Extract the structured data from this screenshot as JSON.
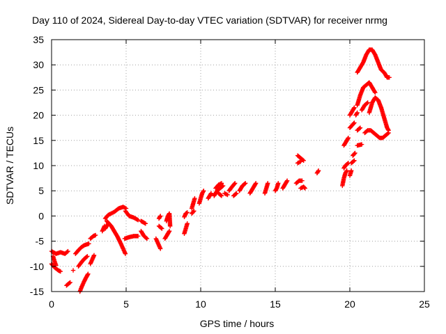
{
  "chart_data": {
    "type": "scatter",
    "title": "Day 110 of 2024, Sidereal Day-to-day VTEC variation (SDTVAR) for receiver nrmg",
    "xlabel": "GPS time / hours",
    "ylabel": "SDTVAR / TECUs",
    "xlim": [
      0,
      25
    ],
    "ylim": [
      -15,
      35
    ],
    "xticks": [
      0,
      5,
      10,
      15,
      20,
      25
    ],
    "yticks": [
      -15,
      -10,
      -5,
      0,
      5,
      10,
      15,
      20,
      25,
      30,
      35
    ],
    "grid": true,
    "marker": "+",
    "series_color": "#ff0000",
    "segments": [
      [
        [
          0.0,
          -7.0
        ],
        [
          0.3,
          -7.5
        ],
        [
          0.6,
          -7.2
        ],
        [
          0.9,
          -7.5
        ],
        [
          1.1,
          -7.0
        ]
      ],
      [
        [
          0.0,
          -9.5
        ],
        [
          0.2,
          -10.2
        ],
        [
          0.45,
          -10.8
        ],
        [
          0.6,
          -11.0
        ]
      ],
      [
        [
          0.1,
          -8.0
        ],
        [
          0.2,
          -9.0
        ],
        [
          0.3,
          -9.8
        ]
      ],
      [
        [
          1.0,
          -13.8
        ],
        [
          1.15,
          -13.4
        ],
        [
          1.25,
          -13.2
        ]
      ],
      [
        [
          1.45,
          -10.8
        ]
      ],
      [
        [
          1.6,
          -7.5
        ],
        [
          1.8,
          -6.8
        ],
        [
          2.0,
          -6.2
        ],
        [
          2.2,
          -5.8
        ],
        [
          2.5,
          -5.5
        ]
      ],
      [
        [
          1.8,
          -10.0
        ],
        [
          2.0,
          -9.2
        ],
        [
          2.2,
          -8.5
        ],
        [
          2.4,
          -8.0
        ]
      ],
      [
        [
          1.9,
          -15.0
        ],
        [
          2.0,
          -14.2
        ],
        [
          2.15,
          -13.2
        ],
        [
          2.3,
          -12.3
        ],
        [
          2.45,
          -11.5
        ]
      ],
      [
        [
          2.6,
          -9.5
        ],
        [
          2.75,
          -8.5
        ],
        [
          2.85,
          -7.8
        ]
      ],
      [
        [
          2.6,
          -4.5
        ],
        [
          2.8,
          -4.0
        ],
        [
          2.95,
          -3.8
        ]
      ],
      [
        [
          3.4,
          -3.0
        ],
        [
          3.55,
          -2.0
        ]
      ],
      [
        [
          3.6,
          -2.5
        ],
        [
          3.7,
          -2.0
        ],
        [
          3.8,
          -1.5
        ]
      ],
      [
        [
          3.6,
          -0.5
        ],
        [
          3.8,
          0.2
        ],
        [
          4.0,
          0.5
        ],
        [
          4.2,
          0.8
        ],
        [
          4.5,
          1.5
        ],
        [
          4.8,
          1.8
        ],
        [
          5.0,
          1.5
        ]
      ],
      [
        [
          3.7,
          -1.0
        ],
        [
          4.0,
          -2.0
        ],
        [
          4.2,
          -3.0
        ],
        [
          4.4,
          -4.0
        ],
        [
          4.6,
          -5.2
        ],
        [
          4.8,
          -6.5
        ],
        [
          4.95,
          -7.5
        ]
      ],
      [
        [
          4.9,
          -4.5
        ],
        [
          5.2,
          -4.2
        ],
        [
          5.5,
          -4.0
        ],
        [
          5.8,
          -4.0
        ]
      ],
      [
        [
          4.95,
          1.0
        ],
        [
          5.2,
          0.0
        ],
        [
          5.5,
          -0.3
        ],
        [
          5.8,
          -0.8
        ]
      ],
      [
        [
          6.0,
          -1.0
        ],
        [
          6.3,
          -1.5
        ]
      ],
      [
        [
          6.0,
          -3.0
        ],
        [
          6.2,
          -4.0
        ],
        [
          6.4,
          -4.5
        ]
      ],
      [
        [
          7.2,
          -2.0
        ],
        [
          7.4,
          -2.5
        ]
      ],
      [
        [
          7.0,
          -4.5
        ],
        [
          7.15,
          -5.5
        ],
        [
          7.3,
          -6.5
        ]
      ],
      [
        [
          7.2,
          -0.5
        ],
        [
          7.3,
          0.0
        ]
      ],
      [
        [
          7.6,
          -4.5
        ],
        [
          7.8,
          -3.5
        ],
        [
          7.9,
          -3.0
        ]
      ],
      [
        [
          7.7,
          -1.0
        ],
        [
          7.8,
          0.0
        ],
        [
          7.9,
          0.5
        ],
        [
          7.95,
          -2.0
        ]
      ],
      [
        [
          8.9,
          -3.5
        ],
        [
          9.0,
          -2.5
        ],
        [
          9.1,
          -1.5
        ]
      ],
      [
        [
          8.9,
          -0.2
        ],
        [
          9.0,
          0.5
        ],
        [
          9.1,
          0.7
        ]
      ],
      [
        [
          9.4,
          1.5
        ],
        [
          9.5,
          2.5
        ],
        [
          9.6,
          3.5
        ]
      ],
      [
        [
          9.4,
          0.5
        ],
        [
          9.55,
          1.0
        ]
      ],
      [
        [
          9.9,
          2.5
        ],
        [
          10.0,
          3.5
        ],
        [
          10.1,
          4.5
        ],
        [
          10.2,
          5.0
        ]
      ],
      [
        [
          10.5,
          3.5
        ],
        [
          10.7,
          4.5
        ]
      ],
      [
        [
          10.9,
          4.0
        ],
        [
          11.1,
          5.0
        ],
        [
          11.3,
          5.5
        ],
        [
          11.5,
          6.0
        ]
      ],
      [
        [
          11.0,
          5.5
        ],
        [
          11.2,
          6.2
        ],
        [
          11.4,
          6.5
        ]
      ],
      [
        [
          11.2,
          4.5
        ],
        [
          11.4,
          4.0
        ]
      ],
      [
        [
          11.6,
          4.5
        ],
        [
          11.8,
          4.2
        ]
      ],
      [
        [
          11.9,
          5.0
        ],
        [
          12.1,
          5.8
        ],
        [
          12.3,
          6.5
        ]
      ],
      [
        [
          12.2,
          4.0
        ],
        [
          12.4,
          4.5
        ]
      ],
      [
        [
          12.6,
          5.0
        ],
        [
          12.8,
          6.0
        ],
        [
          13.0,
          6.5
        ]
      ],
      [
        [
          13.3,
          4.5
        ],
        [
          13.5,
          5.5
        ],
        [
          13.7,
          6.5
        ]
      ],
      [
        [
          14.3,
          4.5
        ],
        [
          14.4,
          5.5
        ],
        [
          14.5,
          6.5
        ]
      ],
      [
        [
          15.0,
          5.0
        ],
        [
          15.1,
          5.5
        ],
        [
          15.2,
          6.5
        ]
      ],
      [
        [
          15.5,
          5.5
        ],
        [
          15.7,
          6.5
        ],
        [
          15.8,
          7.0
        ]
      ],
      [
        [
          16.4,
          6.5
        ],
        [
          16.6,
          7.0
        ],
        [
          16.8,
          7.0
        ]
      ],
      [
        [
          16.5,
          12.0
        ],
        [
          16.7,
          11.5
        ],
        [
          16.9,
          11.0
        ]
      ],
      [
        [
          16.5,
          10.5
        ],
        [
          16.7,
          10.8
        ]
      ],
      [
        [
          16.7,
          5.5
        ],
        [
          16.9,
          5.8
        ],
        [
          17.0,
          5.5
        ]
      ],
      [
        [
          17.8,
          8.5
        ],
        [
          17.9,
          9.0
        ]
      ],
      [
        [
          19.5,
          6.0
        ],
        [
          19.6,
          7.5
        ],
        [
          19.7,
          8.5
        ],
        [
          19.8,
          9.0
        ]
      ],
      [
        [
          19.6,
          9.5
        ],
        [
          19.7,
          10.0
        ],
        [
          19.9,
          10.5
        ]
      ],
      [
        [
          19.6,
          14.0
        ],
        [
          19.8,
          15.0
        ],
        [
          19.9,
          15.5
        ]
      ],
      [
        [
          20.0,
          8.0
        ],
        [
          20.1,
          9.0
        ]
      ],
      [
        [
          20.1,
          10.5
        ],
        [
          20.3,
          11.0
        ]
      ],
      [
        [
          20.2,
          12.0
        ],
        [
          20.35,
          12.5
        ]
      ],
      [
        [
          20.0,
          17.5
        ],
        [
          20.15,
          18.0
        ],
        [
          20.3,
          18.5
        ]
      ],
      [
        [
          20.0,
          20.0
        ],
        [
          20.2,
          21.0
        ],
        [
          20.3,
          21.5
        ]
      ],
      [
        [
          20.4,
          20.0
        ],
        [
          20.5,
          20.5
        ]
      ],
      [
        [
          20.5,
          17.0
        ],
        [
          20.7,
          17.5
        ]
      ],
      [
        [
          20.5,
          14.0
        ],
        [
          20.8,
          14.2
        ]
      ],
      [
        [
          20.5,
          28.5
        ],
        [
          20.7,
          29.5
        ],
        [
          20.9,
          30.5
        ],
        [
          21.1,
          32.0
        ],
        [
          21.3,
          33.0
        ],
        [
          21.5,
          33.0
        ],
        [
          21.7,
          32.0
        ],
        [
          21.9,
          30.5
        ],
        [
          22.1,
          29.0
        ],
        [
          22.3,
          28.5
        ],
        [
          22.5,
          27.5
        ],
        [
          22.65,
          27.5
        ]
      ],
      [
        [
          20.5,
          22.0
        ],
        [
          20.7,
          24.0
        ],
        [
          20.9,
          25.5
        ],
        [
          21.1,
          26.0
        ],
        [
          21.3,
          26.5
        ],
        [
          21.5,
          25.5
        ],
        [
          21.7,
          24.5
        ]
      ],
      [
        [
          20.8,
          21.0
        ],
        [
          21.0,
          22.0
        ],
        [
          21.2,
          22.5
        ]
      ],
      [
        [
          21.0,
          16.5
        ],
        [
          21.2,
          17.0
        ],
        [
          21.4,
          17.0
        ],
        [
          21.6,
          16.5
        ],
        [
          21.8,
          16.0
        ],
        [
          22.0,
          15.5
        ],
        [
          22.2,
          15.5
        ],
        [
          22.4,
          16.0
        ],
        [
          22.6,
          16.5
        ]
      ],
      [
        [
          21.3,
          20.5
        ],
        [
          21.5,
          22.5
        ],
        [
          21.7,
          23.5
        ],
        [
          21.9,
          23.0
        ],
        [
          22.1,
          21.5
        ],
        [
          22.3,
          19.5
        ],
        [
          22.5,
          17.5
        ],
        [
          22.6,
          17.0
        ]
      ]
    ]
  }
}
